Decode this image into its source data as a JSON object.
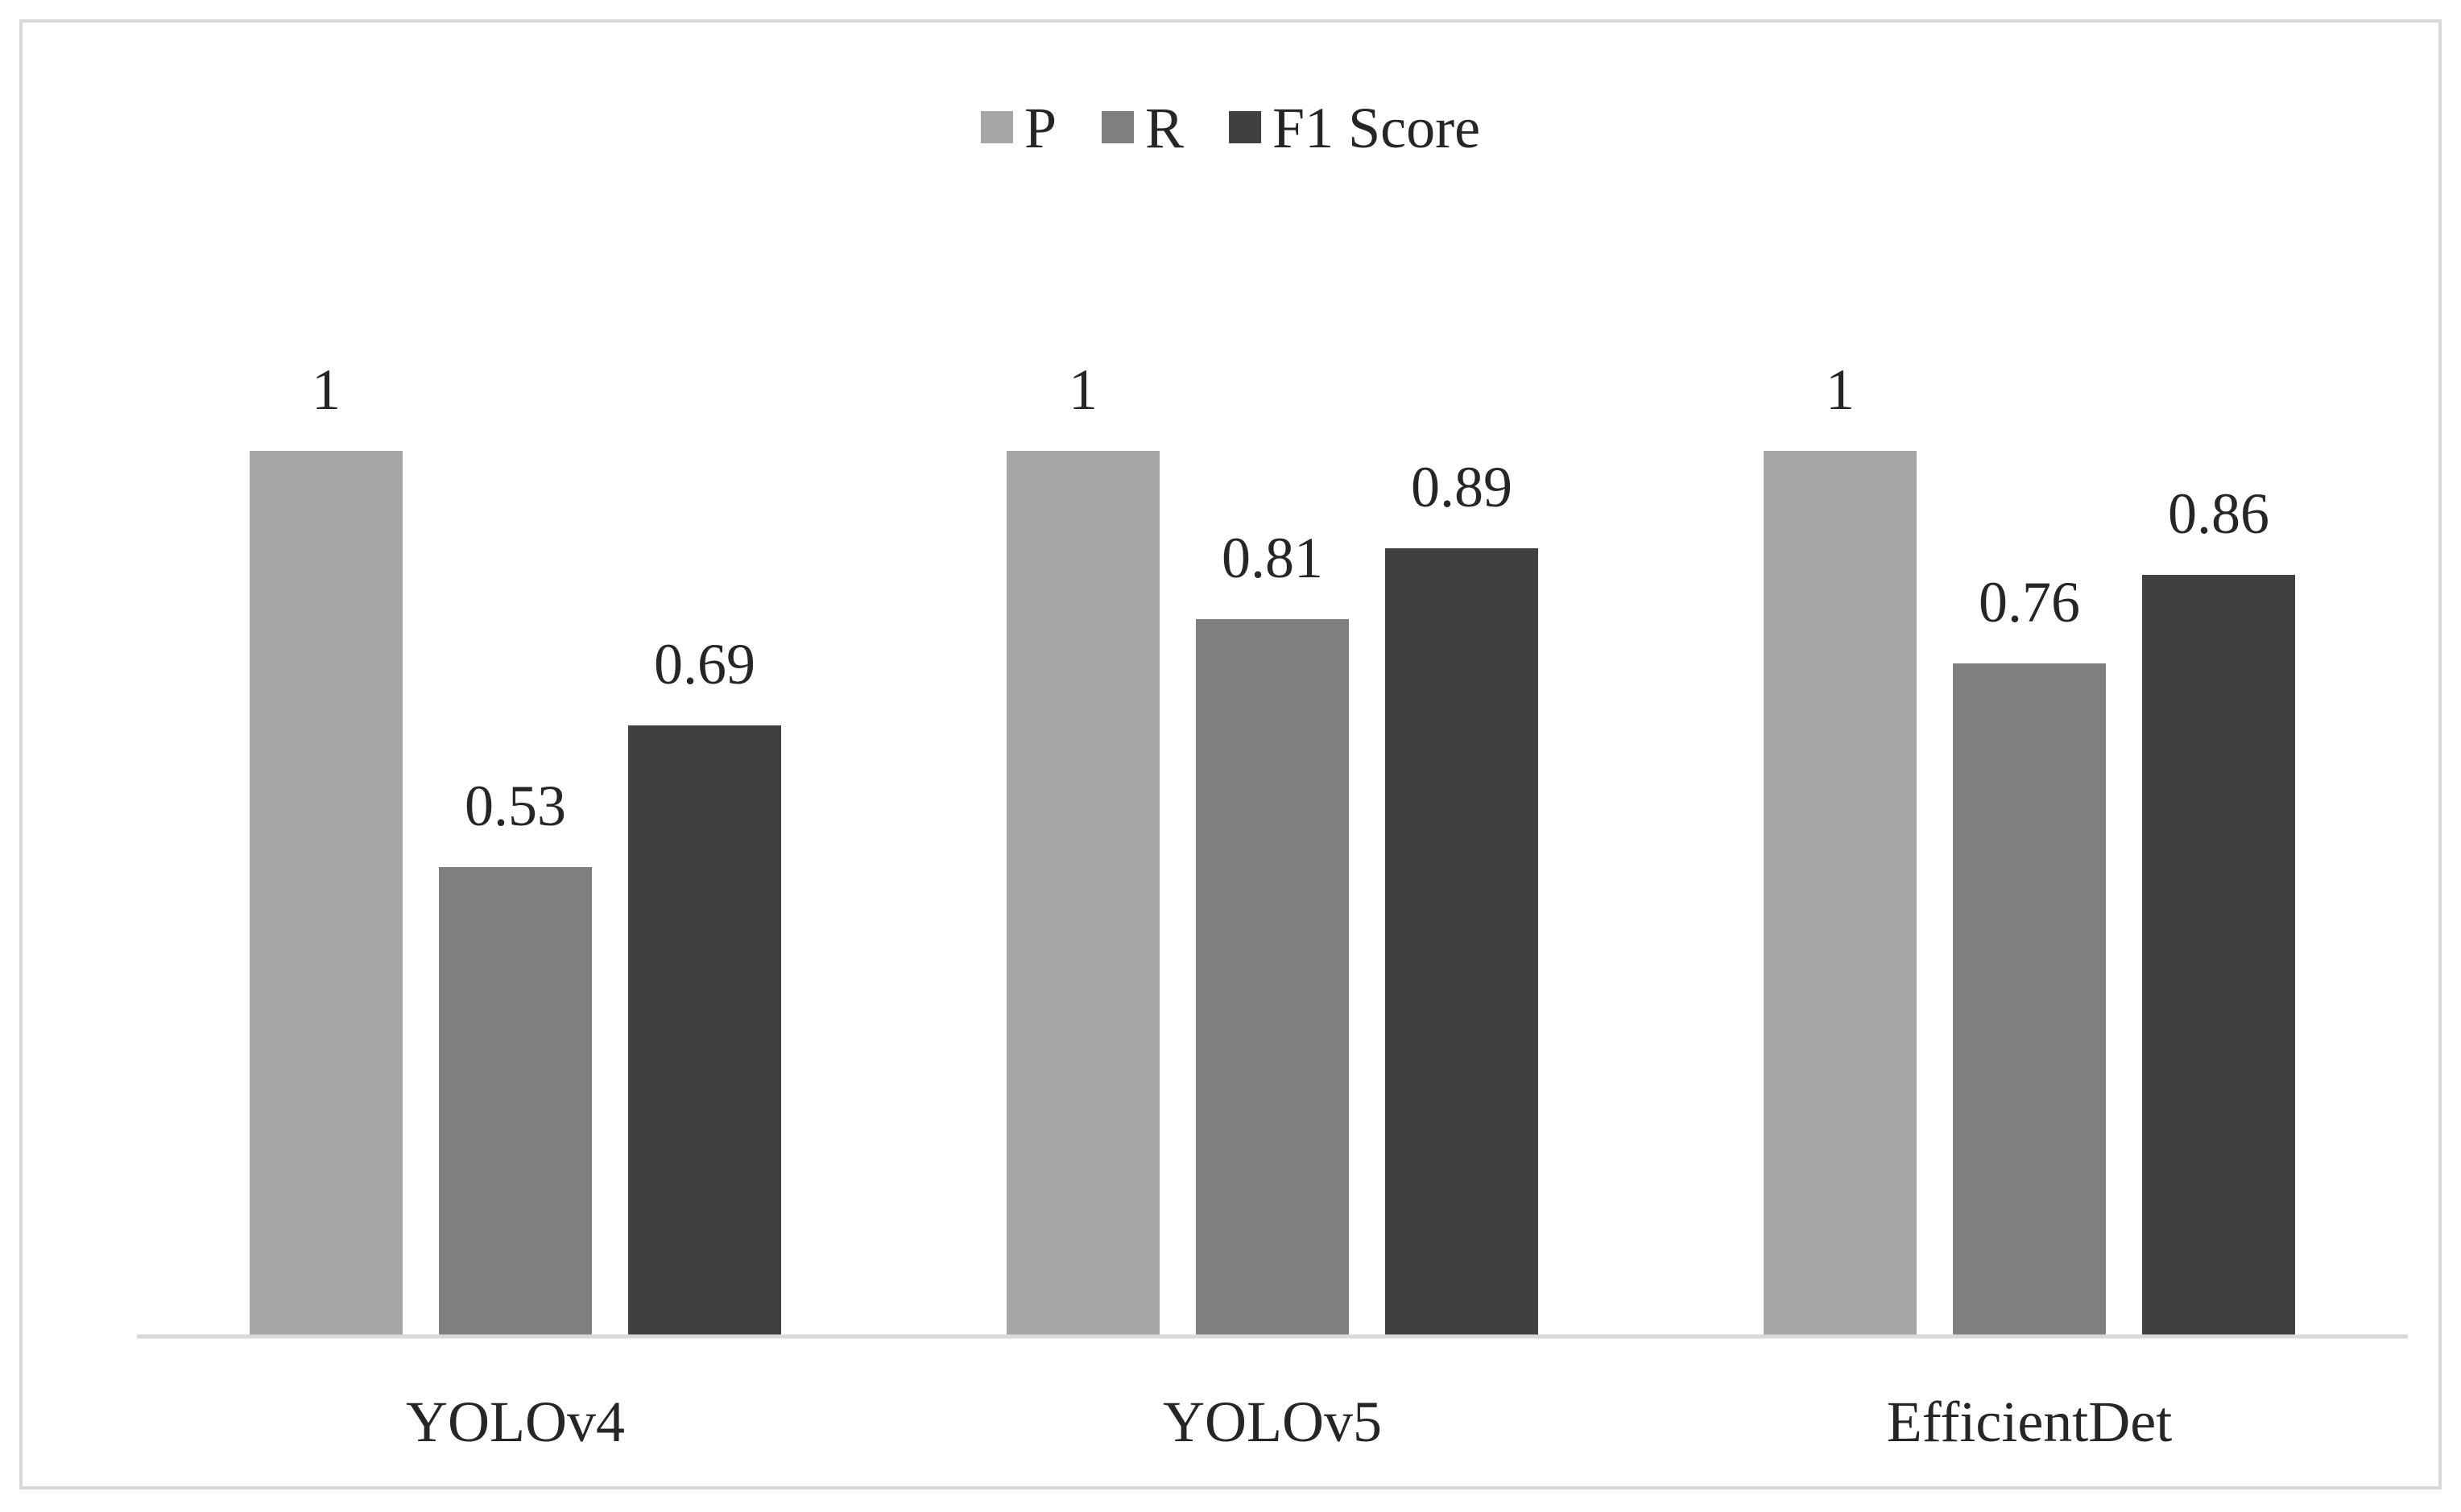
{
  "chart_data": {
    "type": "bar",
    "categories": [
      "YOLOv4",
      "YOLOv5",
      "EfficientDet"
    ],
    "series": [
      {
        "name": "P",
        "color": "#a6a6a6",
        "values": [
          1,
          1,
          1
        ],
        "labels": [
          "1",
          "1",
          "1"
        ]
      },
      {
        "name": "R",
        "color": "#7f7f7f",
        "values": [
          0.53,
          0.81,
          0.76
        ],
        "labels": [
          "0.53",
          "0.81",
          "0.76"
        ]
      },
      {
        "name": "F1 Score",
        "color": "#404040",
        "values": [
          0.69,
          0.89,
          0.86
        ],
        "labels": [
          "0.69",
          "0.89",
          "0.86"
        ]
      }
    ],
    "title": "",
    "xlabel": "",
    "ylabel": "",
    "ylim": [
      0,
      1.1
    ],
    "grid": false,
    "legend": "top-center",
    "axis_color": "#d9d9d9",
    "frame_color": "#d9d9d9"
  }
}
